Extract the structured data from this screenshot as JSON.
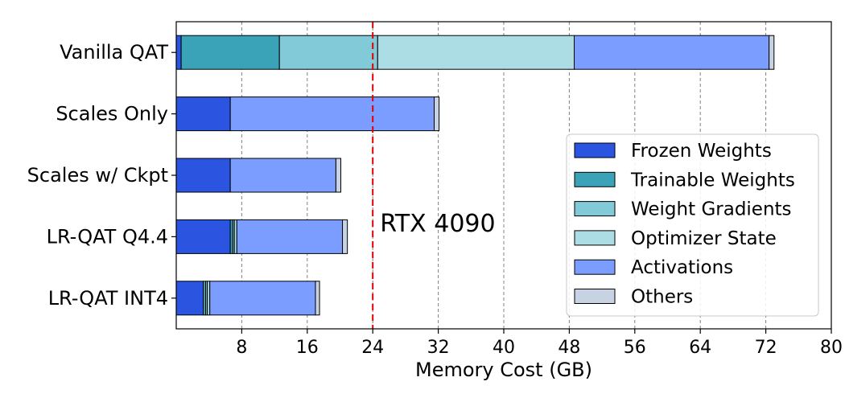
{
  "chart_data": {
    "type": "bar",
    "orientation": "horizontal",
    "stacked": true,
    "title": "",
    "xlabel": "Memory Cost (GB)",
    "ylabel": "",
    "xlim": [
      0,
      80
    ],
    "xticks": [
      8,
      16,
      24,
      32,
      40,
      48,
      56,
      64,
      72,
      80
    ],
    "grid": "x-dashed",
    "legend_position": "right",
    "categories": [
      "Vanilla QAT",
      "Scales Only",
      "Scales w/ Ckpt",
      "LR-QAT Q4.4",
      "LR-QAT INT4"
    ],
    "series": [
      {
        "name": "Frozen Weights",
        "color": "#2b55e0",
        "values": [
          0.6,
          6.6,
          6.6,
          6.6,
          3.3
        ]
      },
      {
        "name": "Trainable Weights",
        "color": "#3aa3b8",
        "values": [
          12.0,
          0,
          0,
          0.3,
          0.3
        ]
      },
      {
        "name": "Weight Gradients",
        "color": "#82cad8",
        "values": [
          12.0,
          0,
          0,
          0.2,
          0.2
        ]
      },
      {
        "name": "Optimizer State",
        "color": "#acdde5",
        "values": [
          24.0,
          0,
          0,
          0.3,
          0.3
        ]
      },
      {
        "name": "Activations",
        "color": "#7b9dff",
        "values": [
          23.8,
          24.9,
          12.9,
          12.9,
          12.9
        ]
      },
      {
        "name": "Others",
        "color": "#c7d2e3",
        "values": [
          0.6,
          0.6,
          0.6,
          0.6,
          0.5
        ]
      }
    ],
    "annotations": [
      {
        "type": "vline",
        "x": 24,
        "color": "#e00000",
        "style": "dashed",
        "label": "RTX 4090"
      }
    ]
  }
}
